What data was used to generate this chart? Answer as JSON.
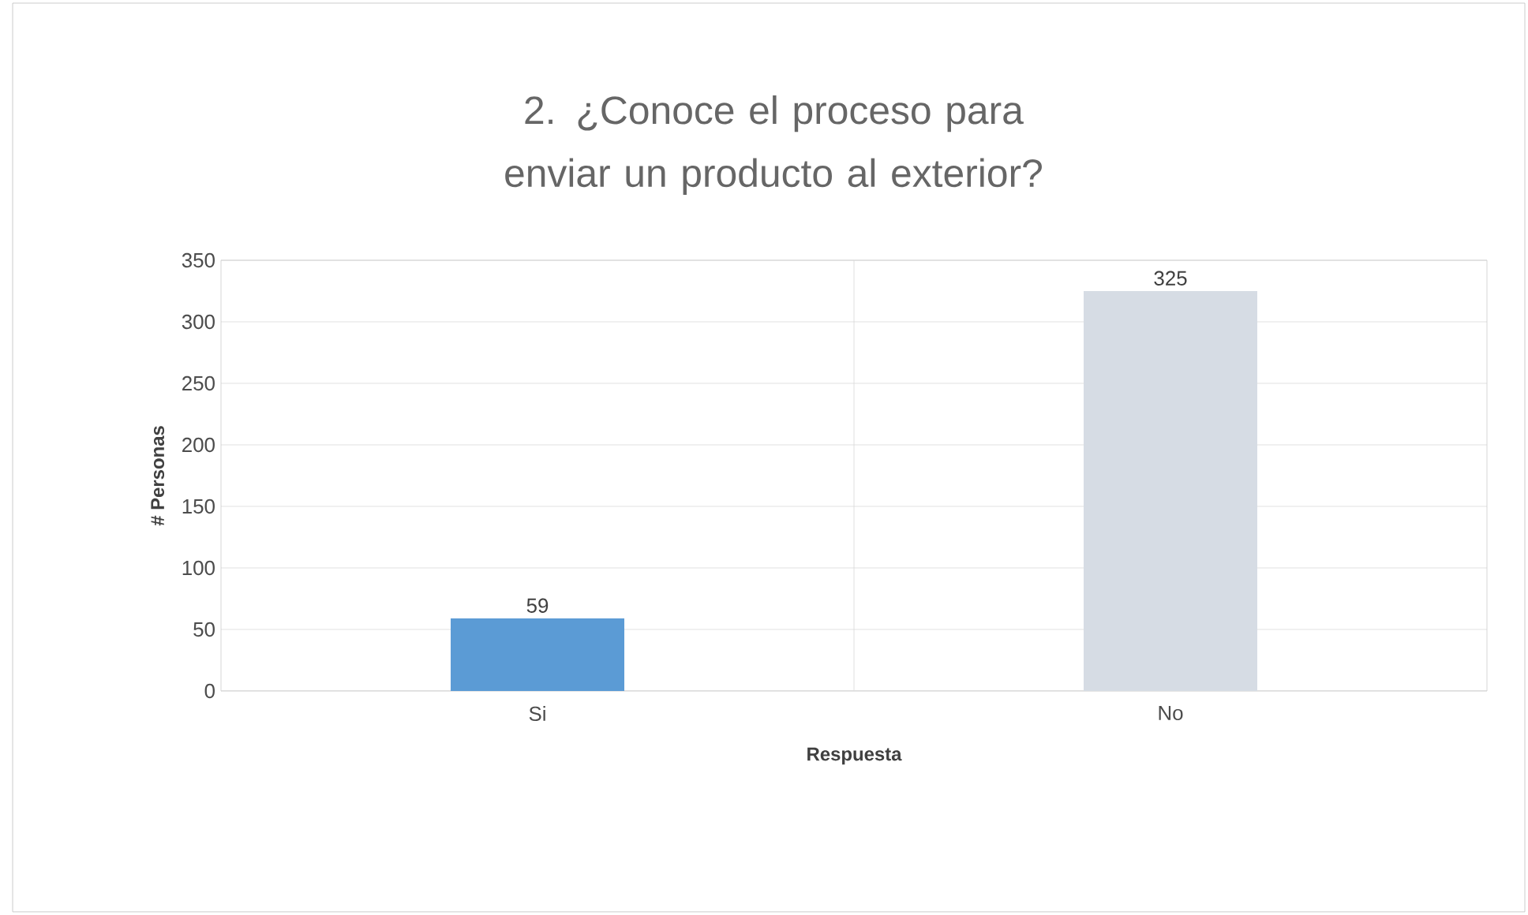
{
  "chart_data": {
    "type": "bar",
    "title": "2. ¿Conoce el proceso para enviar un producto al exterior?",
    "xlabel": "Respuesta",
    "ylabel": "# Personas",
    "categories": [
      "Si",
      "No"
    ],
    "values": [
      59,
      325
    ],
    "colors": [
      "#5b9bd5",
      "#d6dce4"
    ],
    "ylim": [
      0,
      350
    ],
    "yticks": [
      0,
      50,
      100,
      150,
      200,
      250,
      300,
      350
    ],
    "grid": "y",
    "data_labels": true
  }
}
